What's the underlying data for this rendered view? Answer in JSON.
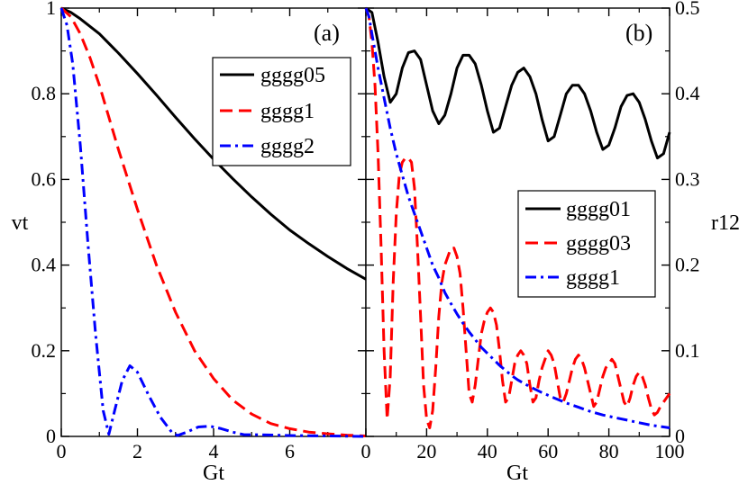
{
  "chart_data": [
    {
      "type": "line",
      "panel_label": "(a)",
      "xlabel": "Gt",
      "ylabel": "vt",
      "xlim": [
        0,
        8
      ],
      "ylim": [
        0,
        1
      ],
      "xticks": [
        0,
        2,
        4,
        6
      ],
      "yticks": [
        0,
        0.2,
        0.4,
        0.6,
        0.8,
        1
      ],
      "xtick_labels": [
        "0",
        "2",
        "4",
        "6"
      ],
      "ytick_labels": [
        "0",
        "0.2",
        "0.4",
        "0.6",
        "0.8",
        "1"
      ],
      "legend_position": "top-right",
      "series": [
        {
          "name": "gggg05",
          "color": "#000000",
          "dash": "solid",
          "x": [
            0,
            0.25,
            0.5,
            1,
            1.5,
            2,
            2.5,
            3,
            3.5,
            4,
            4.5,
            5,
            5.5,
            6,
            6.5,
            7,
            7.5,
            8
          ],
          "y": [
            1.0,
            0.99,
            0.975,
            0.94,
            0.895,
            0.847,
            0.797,
            0.745,
            0.695,
            0.647,
            0.602,
            0.559,
            0.519,
            0.482,
            0.45,
            0.42,
            0.392,
            0.367
          ]
        },
        {
          "name": "gggg1",
          "color": "#ff0000",
          "dash": "long-dash",
          "x": [
            0,
            0.25,
            0.5,
            0.75,
            1,
            1.5,
            2,
            2.5,
            3,
            3.5,
            4,
            4.5,
            5,
            5.5,
            6,
            6.5,
            7,
            7.5,
            8
          ],
          "y": [
            1.0,
            0.98,
            0.94,
            0.885,
            0.82,
            0.67,
            0.53,
            0.4,
            0.29,
            0.2,
            0.135,
            0.085,
            0.052,
            0.03,
            0.018,
            0.01,
            0.006,
            0.003,
            0.001
          ]
        },
        {
          "name": "gggg2",
          "color": "#0000ff",
          "dash": "dash-dot",
          "x": [
            0,
            0.15,
            0.3,
            0.5,
            0.7,
            0.9,
            1.1,
            1.25,
            1.4,
            1.6,
            1.8,
            2.0,
            2.3,
            2.6,
            2.9,
            3.05,
            3.3,
            3.6,
            3.9,
            4.2,
            4.5,
            4.8,
            5.2,
            5.6,
            6.0,
            8.0
          ],
          "y": [
            1.0,
            0.96,
            0.87,
            0.68,
            0.45,
            0.24,
            0.06,
            0.005,
            0.06,
            0.13,
            0.165,
            0.15,
            0.095,
            0.045,
            0.01,
            0.002,
            0.01,
            0.022,
            0.024,
            0.018,
            0.01,
            0.004,
            0.004,
            0.003,
            0.002,
            0.0
          ]
        }
      ]
    },
    {
      "type": "line",
      "panel_label": "(b)",
      "xlabel": "Gt",
      "ylabel": "r12",
      "xlim": [
        0,
        100
      ],
      "ylim": [
        0,
        0.5
      ],
      "xticks": [
        0,
        20,
        40,
        60,
        80,
        100
      ],
      "yticks": [
        0,
        0.1,
        0.2,
        0.3,
        0.4,
        0.5
      ],
      "xtick_labels": [
        "0",
        "20",
        "40",
        "60",
        "80",
        "100"
      ],
      "ytick_labels": [
        "0",
        "0.1",
        "0.2",
        "0.3",
        "0.4",
        "0.5"
      ],
      "legend_position": "center-right",
      "series": [
        {
          "name": "gggg01",
          "color": "#000000",
          "dash": "solid",
          "x": [
            0,
            2,
            4,
            6,
            8,
            10,
            12,
            14,
            16,
            18,
            20,
            22,
            24,
            26,
            28,
            30,
            32,
            34,
            36,
            38,
            40,
            42,
            44,
            46,
            48,
            50,
            52,
            54,
            56,
            58,
            60,
            62,
            64,
            66,
            68,
            70,
            72,
            74,
            76,
            78,
            80,
            82,
            84,
            86,
            88,
            90,
            92,
            94,
            96,
            98,
            100
          ],
          "y": [
            0.5,
            0.495,
            0.46,
            0.42,
            0.39,
            0.4,
            0.43,
            0.448,
            0.45,
            0.44,
            0.41,
            0.38,
            0.365,
            0.375,
            0.4,
            0.43,
            0.445,
            0.445,
            0.435,
            0.41,
            0.38,
            0.355,
            0.36,
            0.385,
            0.41,
            0.425,
            0.43,
            0.42,
            0.4,
            0.37,
            0.345,
            0.35,
            0.375,
            0.4,
            0.41,
            0.41,
            0.4,
            0.38,
            0.355,
            0.335,
            0.34,
            0.36,
            0.385,
            0.398,
            0.4,
            0.39,
            0.37,
            0.345,
            0.325,
            0.33,
            0.355
          ]
        },
        {
          "name": "gggg03",
          "color": "#ff0000",
          "dash": "long-dash",
          "x": [
            0,
            1,
            2,
            3,
            4,
            5,
            6,
            7,
            8,
            9,
            10,
            11,
            12,
            13,
            14,
            15,
            16,
            17,
            18,
            19,
            20,
            21,
            22,
            23,
            24,
            25,
            26,
            27,
            28,
            29,
            30,
            31,
            32,
            33,
            34,
            35,
            36,
            37,
            38,
            39,
            40,
            41,
            42,
            43,
            44,
            45,
            46,
            47,
            48,
            49,
            50,
            51,
            52,
            53,
            54,
            55,
            56,
            57,
            58,
            59,
            60,
            61,
            62,
            63,
            64,
            65,
            66,
            67,
            68,
            69,
            70,
            71,
            72,
            73,
            74,
            75,
            76,
            77,
            78,
            79,
            80,
            81,
            82,
            83,
            84,
            85,
            86,
            87,
            88,
            89,
            90,
            91,
            92,
            93,
            94,
            95,
            96,
            97,
            98,
            99,
            100
          ],
          "y": [
            0.5,
            0.49,
            0.46,
            0.41,
            0.33,
            0.22,
            0.1,
            0.02,
            0.07,
            0.18,
            0.26,
            0.305,
            0.32,
            0.325,
            0.325,
            0.32,
            0.29,
            0.22,
            0.14,
            0.06,
            0.02,
            0.01,
            0.03,
            0.08,
            0.14,
            0.18,
            0.2,
            0.21,
            0.22,
            0.22,
            0.21,
            0.19,
            0.15,
            0.1,
            0.05,
            0.04,
            0.06,
            0.09,
            0.12,
            0.135,
            0.145,
            0.15,
            0.145,
            0.13,
            0.1,
            0.065,
            0.04,
            0.045,
            0.065,
            0.085,
            0.095,
            0.1,
            0.095,
            0.085,
            0.06,
            0.04,
            0.045,
            0.065,
            0.08,
            0.09,
            0.1,
            0.095,
            0.085,
            0.065,
            0.045,
            0.04,
            0.05,
            0.065,
            0.08,
            0.09,
            0.095,
            0.09,
            0.08,
            0.065,
            0.05,
            0.035,
            0.04,
            0.055,
            0.07,
            0.08,
            0.085,
            0.09,
            0.085,
            0.07,
            0.055,
            0.04,
            0.035,
            0.045,
            0.06,
            0.07,
            0.075,
            0.07,
            0.06,
            0.045,
            0.032,
            0.025,
            0.028,
            0.035,
            0.04,
            0.045,
            0.05
          ]
        },
        {
          "name": "gggg1",
          "color": "#0000ff",
          "dash": "dash-dot",
          "x": [
            0,
            1,
            2,
            3,
            4,
            6,
            8,
            10,
            12,
            14,
            16,
            18,
            20,
            22,
            24,
            26,
            28,
            30,
            32,
            34,
            36,
            38,
            40,
            42,
            44,
            46,
            48,
            50,
            54,
            58,
            62,
            66,
            70,
            74,
            78,
            82,
            86,
            90,
            94,
            98,
            100
          ],
          "y": [
            0.5,
            0.49,
            0.47,
            0.45,
            0.43,
            0.395,
            0.36,
            0.33,
            0.305,
            0.28,
            0.26,
            0.24,
            0.22,
            0.2,
            0.185,
            0.168,
            0.155,
            0.143,
            0.132,
            0.122,
            0.113,
            0.104,
            0.097,
            0.09,
            0.083,
            0.077,
            0.071,
            0.066,
            0.058,
            0.051,
            0.045,
            0.039,
            0.034,
            0.029,
            0.025,
            0.022,
            0.019,
            0.016,
            0.013,
            0.011,
            0.01
          ]
        }
      ]
    }
  ]
}
